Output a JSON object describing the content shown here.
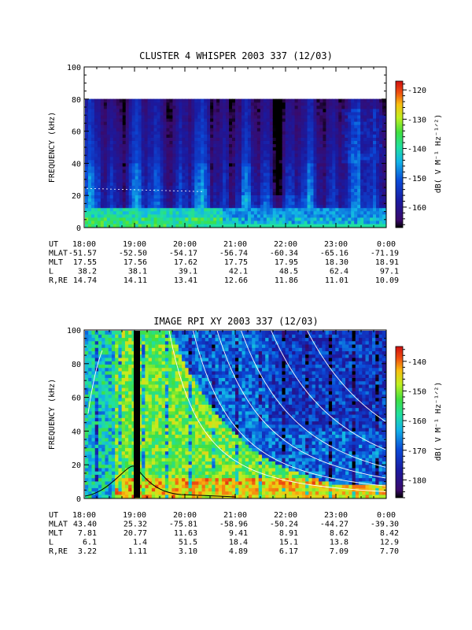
{
  "chart_data": [
    {
      "type": "heatmap",
      "title": "CLUSTER 4 WHISPER 2003 337 (12/03)",
      "ylabel": "FREQUENCY (kHz)",
      "ylim": [
        0,
        100
      ],
      "y_ticks": [
        "0",
        "20",
        "40",
        "60",
        "80",
        "100"
      ],
      "data_top_khz": 80,
      "colorbar": {
        "label": "dB( V M⁻¹ Hz⁻¹ᐟ²)",
        "range": [
          -167,
          -117
        ],
        "ticks": [
          "-120",
          "-130",
          "-140",
          "-150",
          "-160"
        ]
      },
      "ephemeris": {
        "row_labels": [
          "UT",
          "MLAT",
          "MLT",
          "L",
          "R,RE"
        ],
        "times": [
          "18:00",
          "19:00",
          "20:00",
          "21:00",
          "22:00",
          "23:00",
          "0:00"
        ],
        "MLAT": [
          "-51.57",
          "-52.50",
          "-54.17",
          "-56.74",
          "-60.34",
          "-65.16",
          "-71.19"
        ],
        "MLT": [
          "17.55",
          "17.56",
          "17.62",
          "17.75",
          "17.95",
          "18.30",
          "18.91"
        ],
        "L": [
          "38.2",
          "38.1",
          "39.1",
          "42.1",
          "48.5",
          "62.4",
          "97.1"
        ],
        "R,RE": [
          "14.74",
          "14.11",
          "13.41",
          "12.66",
          "11.86",
          "11.01",
          "10.09"
        ]
      }
    },
    {
      "type": "heatmap",
      "title": "IMAGE RPI XY 2003 337 (12/03)",
      "ylabel": "FREQUENCY (kHz)",
      "ylim": [
        0,
        100
      ],
      "y_ticks": [
        "0",
        "20",
        "40",
        "60",
        "80",
        "100"
      ],
      "colorbar": {
        "label": "dB( V M⁻¹ Hz⁻¹ᐟ²)",
        "range": [
          -186,
          -135
        ],
        "ticks": [
          "-140",
          "-150",
          "-160",
          "-170",
          "-180"
        ]
      },
      "ephemeris": {
        "row_labels": [
          "UT",
          "MLAT",
          "MLT",
          "L",
          "R,RE"
        ],
        "times": [
          "18:00",
          "19:00",
          "20:00",
          "21:00",
          "22:00",
          "23:00",
          "0:00"
        ],
        "MLAT": [
          "43.40",
          "25.32",
          "-75.81",
          "-58.96",
          "-50.24",
          "-44.27",
          "-39.30"
        ],
        "MLT": [
          "7.81",
          "20.77",
          "11.63",
          "9.41",
          "8.91",
          "8.62",
          "8.42"
        ],
        "L": [
          "6.1",
          "1.4",
          "51.5",
          "18.4",
          "15.1",
          "13.8",
          "12.9"
        ],
        "R,RE": [
          "3.22",
          "1.11",
          "3.10",
          "4.89",
          "6.17",
          "7.09",
          "7.70"
        ]
      }
    }
  ]
}
